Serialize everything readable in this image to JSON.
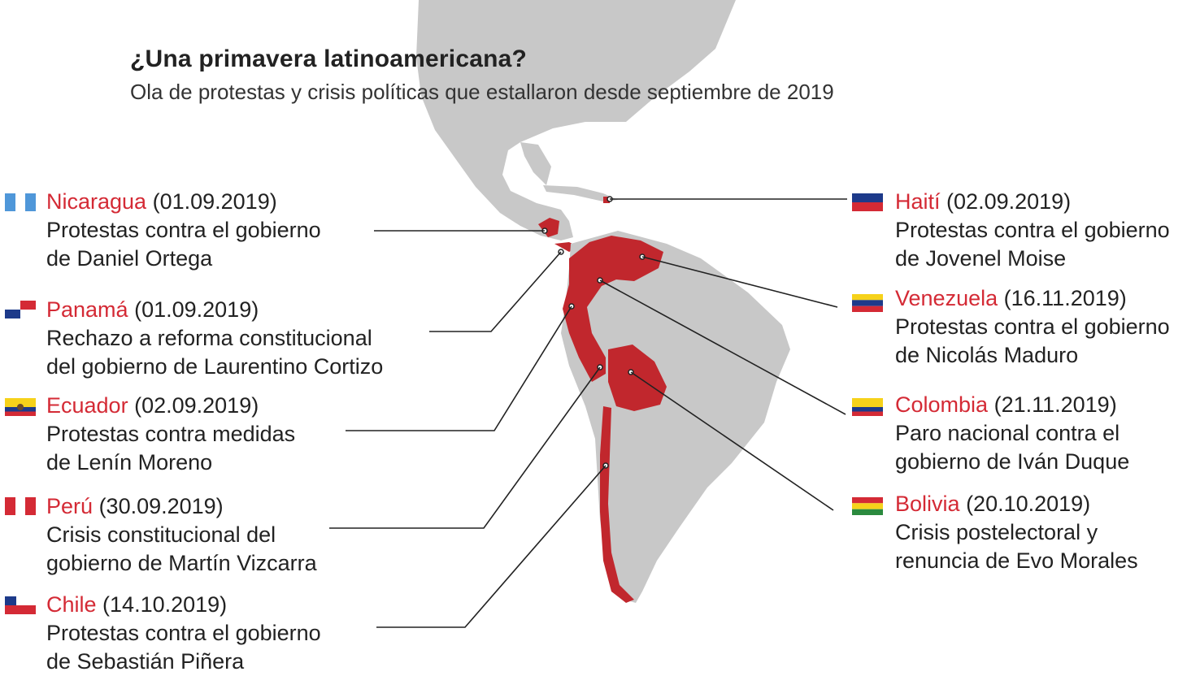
{
  "title": "¿Una primavera latinoamericana?",
  "subtitle": "Ola de protestas y crisis políticas que estallaron desde septiembre de 2019",
  "entries": [
    {
      "country": "Nicaragua",
      "date": "(01.09.2019)",
      "desc1": "Protestas contra el gobierno",
      "desc2": "de Daniel Ortega",
      "flag": "guatemala-flag-icon"
    },
    {
      "country": "Panamá",
      "date": "(01.09.2019)",
      "desc1": "Rechazo a reforma constitucional",
      "desc2": "del gobierno de Laurentino Cortizo",
      "flag": "panama-flag-icon"
    },
    {
      "country": "Ecuador",
      "date": "(02.09.2019)",
      "desc1": "Protestas contra medidas",
      "desc2": "de Lenín Moreno",
      "flag": "ecuador-flag-icon"
    },
    {
      "country": "Perú",
      "date": "(30.09.2019)",
      "desc1": "Crisis constitucional del",
      "desc2": "gobierno de Martín Vizcarra",
      "flag": "peru-flag-icon"
    },
    {
      "country": "Chile",
      "date": "(14.10.2019)",
      "desc1": "Protestas contra el gobierno",
      "desc2": "de Sebastián Piñera",
      "flag": "chile-flag-icon"
    },
    {
      "country": "Haití",
      "date": "(02.09.2019)",
      "desc1": "Protestas contra el gobierno",
      "desc2": "de Jovenel Moise",
      "flag": "haiti-flag-icon"
    },
    {
      "country": "Venezuela",
      "date": "(16.11.2019)",
      "desc1": "Protestas contra el gobierno",
      "desc2": "de Nicolás Maduro",
      "flag": "venezuela-flag-icon"
    },
    {
      "country": "Colombia",
      "date": "(21.11.2019)",
      "desc1": "Paro nacional contra el",
      "desc2": "gobierno de Iván Duque",
      "flag": "colombia-flag-icon"
    },
    {
      "country": "Bolivia",
      "date": "(20.10.2019)",
      "desc1": "Crisis postelectoral y",
      "desc2": "renuncia de Evo Morales",
      "flag": "bolivia-flag-icon"
    }
  ],
  "colors": {
    "highlight": "#c1272d",
    "land": "#c8c8c8",
    "label": "#d42a35"
  }
}
